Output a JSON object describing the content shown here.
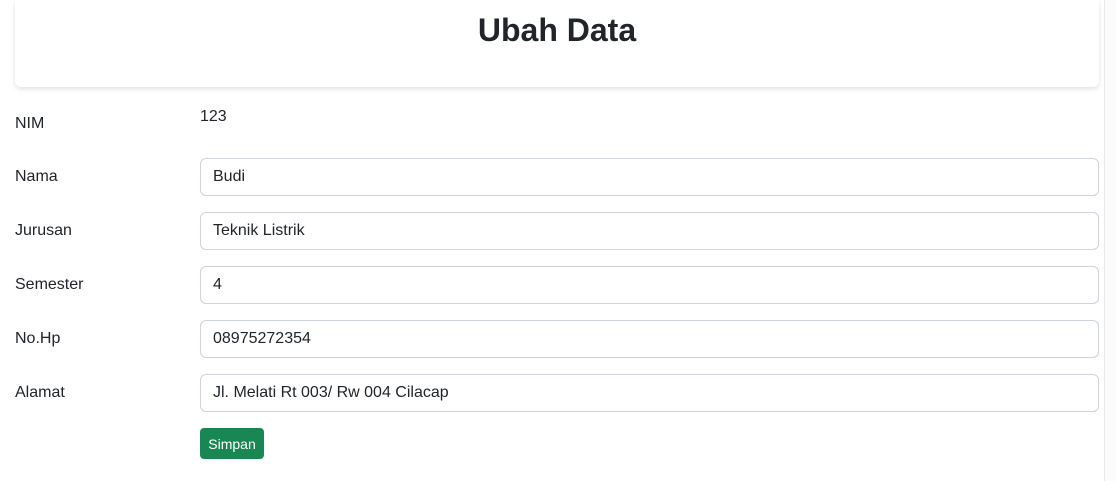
{
  "header": {
    "title": "Ubah Data"
  },
  "form": {
    "nim": {
      "label": "NIM",
      "value": "123"
    },
    "nama": {
      "label": "Nama",
      "value": "Budi"
    },
    "jurusan": {
      "label": "Jurusan",
      "value": "Teknik Listrik"
    },
    "semester": {
      "label": "Semester",
      "value": "4"
    },
    "nohp": {
      "label": "No.Hp",
      "value": "08975272354"
    },
    "alamat": {
      "label": "Alamat",
      "value": "Jl. Melati Rt 003/ Rw 004 Cilacap"
    },
    "submit_label": "Simpan"
  },
  "colors": {
    "primary_button": "#198754",
    "input_border": "#ced4da",
    "text": "#212529"
  }
}
